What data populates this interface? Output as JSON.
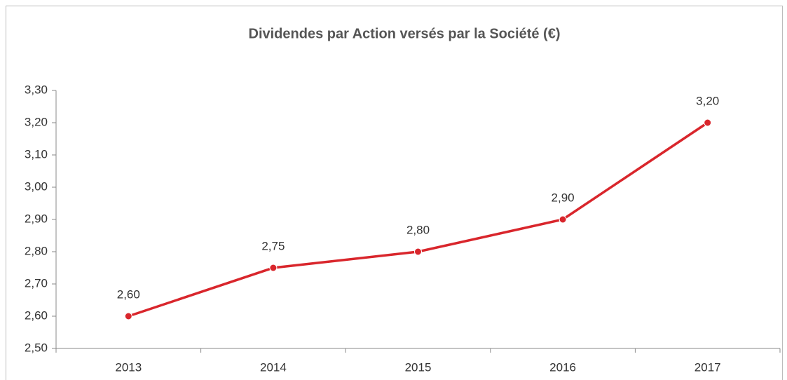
{
  "chart_data": {
    "type": "line",
    "title": "Dividendes par Action versés par la Société  (€)",
    "categories": [
      "2013",
      "2014",
      "2015",
      "2016",
      "2017"
    ],
    "series": [
      {
        "name": "Dividendes par Action",
        "color": "#d9262c",
        "values": [
          2.6,
          2.75,
          2.8,
          2.9,
          3.2
        ],
        "value_labels": [
          "2,60",
          "2,75",
          "2,80",
          "2,90",
          "3,20"
        ]
      }
    ],
    "ylim": [
      2.5,
      3.3
    ],
    "yticks": [
      {
        "value": 2.5,
        "label": "2,50"
      },
      {
        "value": 2.6,
        "label": "2,60"
      },
      {
        "value": 2.7,
        "label": "2,70"
      },
      {
        "value": 2.8,
        "label": "2,80"
      },
      {
        "value": 2.9,
        "label": "2,90"
      },
      {
        "value": 3.0,
        "label": "3,00"
      },
      {
        "value": 3.1,
        "label": "3,10"
      },
      {
        "value": 3.2,
        "label": "3,20"
      },
      {
        "value": 3.3,
        "label": "3,30"
      }
    ],
    "grid": false
  }
}
